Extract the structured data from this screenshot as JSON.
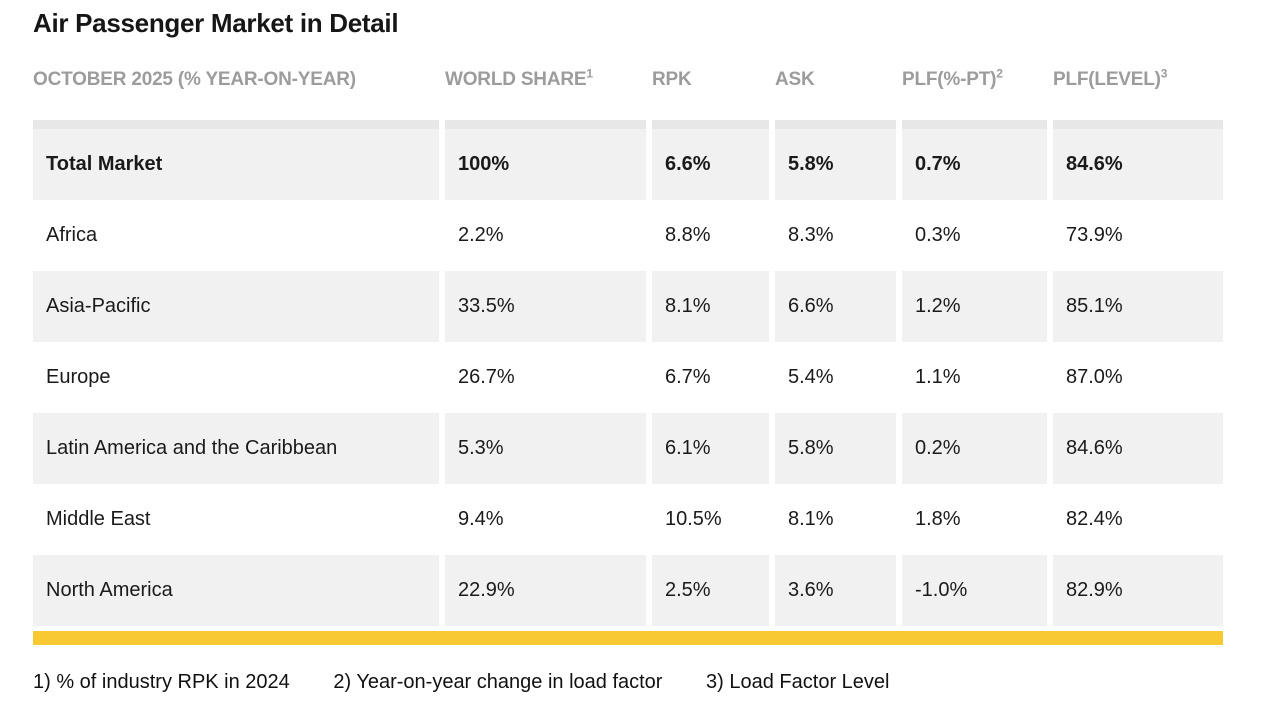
{
  "title": "Air Passenger Market in Detail",
  "colors": {
    "accent": "#F8C932",
    "row_alt": "#F1F1F1",
    "top_strip": "#E7E7E7",
    "header_text": "#9C9C9C",
    "text": "#1A1A1A"
  },
  "table": {
    "columns": [
      {
        "label": "OCTOBER 2025 (% YEAR-ON-YEAR)",
        "sup": ""
      },
      {
        "label": "WORLD SHARE",
        "sup": "1"
      },
      {
        "label": "RPK",
        "sup": ""
      },
      {
        "label": "ASK",
        "sup": ""
      },
      {
        "label": "PLF(%-PT)",
        "sup": "2"
      },
      {
        "label": "PLF(LEVEL)",
        "sup": "3"
      }
    ],
    "rows": [
      {
        "label": "Total Market",
        "bold": true,
        "values": [
          "100%",
          "6.6%",
          "5.8%",
          "0.7%",
          "84.6%"
        ]
      },
      {
        "label": "Africa",
        "bold": false,
        "values": [
          "2.2%",
          "8.8%",
          "8.3%",
          "0.3%",
          "73.9%"
        ]
      },
      {
        "label": "Asia-Pacific",
        "bold": false,
        "values": [
          "33.5%",
          "8.1%",
          "6.6%",
          "1.2%",
          "85.1%"
        ]
      },
      {
        "label": "Europe",
        "bold": false,
        "values": [
          "26.7%",
          "6.7%",
          "5.4%",
          "1.1%",
          "87.0%"
        ]
      },
      {
        "label": "Latin America and the Caribbean",
        "bold": false,
        "values": [
          "5.3%",
          "6.1%",
          "5.8%",
          "0.2%",
          "84.6%"
        ]
      },
      {
        "label": "Middle East",
        "bold": false,
        "values": [
          "9.4%",
          "10.5%",
          "8.1%",
          "1.8%",
          "82.4%"
        ]
      },
      {
        "label": "North America",
        "bold": false,
        "values": [
          "22.9%",
          "2.5%",
          "3.6%",
          "-1.0%",
          "82.9%"
        ]
      }
    ]
  },
  "footnotes": [
    "1) % of industry RPK in 2024",
    "2) Year-on-year change in load factor",
    "3) Load Factor Level"
  ],
  "chart_data": {
    "type": "table",
    "title": "Air Passenger Market in Detail",
    "period": "OCTOBER 2025 (% YEAR-ON-YEAR)",
    "columns": [
      "WORLD SHARE (1)",
      "RPK",
      "ASK",
      "PLF(%-PT) (2)",
      "PLF(LEVEL) (3)"
    ],
    "categories": [
      "Total Market",
      "Africa",
      "Asia-Pacific",
      "Europe",
      "Latin America and the Caribbean",
      "Middle East",
      "North America"
    ],
    "series": [
      {
        "name": "WORLD SHARE",
        "values": [
          100,
          2.2,
          33.5,
          26.7,
          5.3,
          9.4,
          22.9
        ]
      },
      {
        "name": "RPK",
        "values": [
          6.6,
          8.8,
          8.1,
          6.7,
          6.1,
          10.5,
          2.5
        ]
      },
      {
        "name": "ASK",
        "values": [
          5.8,
          8.3,
          6.6,
          5.4,
          5.8,
          8.1,
          3.6
        ]
      },
      {
        "name": "PLF(%-PT)",
        "values": [
          0.7,
          0.3,
          1.2,
          1.1,
          0.2,
          1.8,
          -1.0
        ]
      },
      {
        "name": "PLF(LEVEL)",
        "values": [
          84.6,
          73.9,
          85.1,
          87.0,
          84.6,
          82.4,
          82.9
        ]
      }
    ],
    "footnotes": [
      "1) % of industry RPK in 2024",
      "2) Year-on-year change in load factor",
      "3) Load Factor Level"
    ]
  }
}
